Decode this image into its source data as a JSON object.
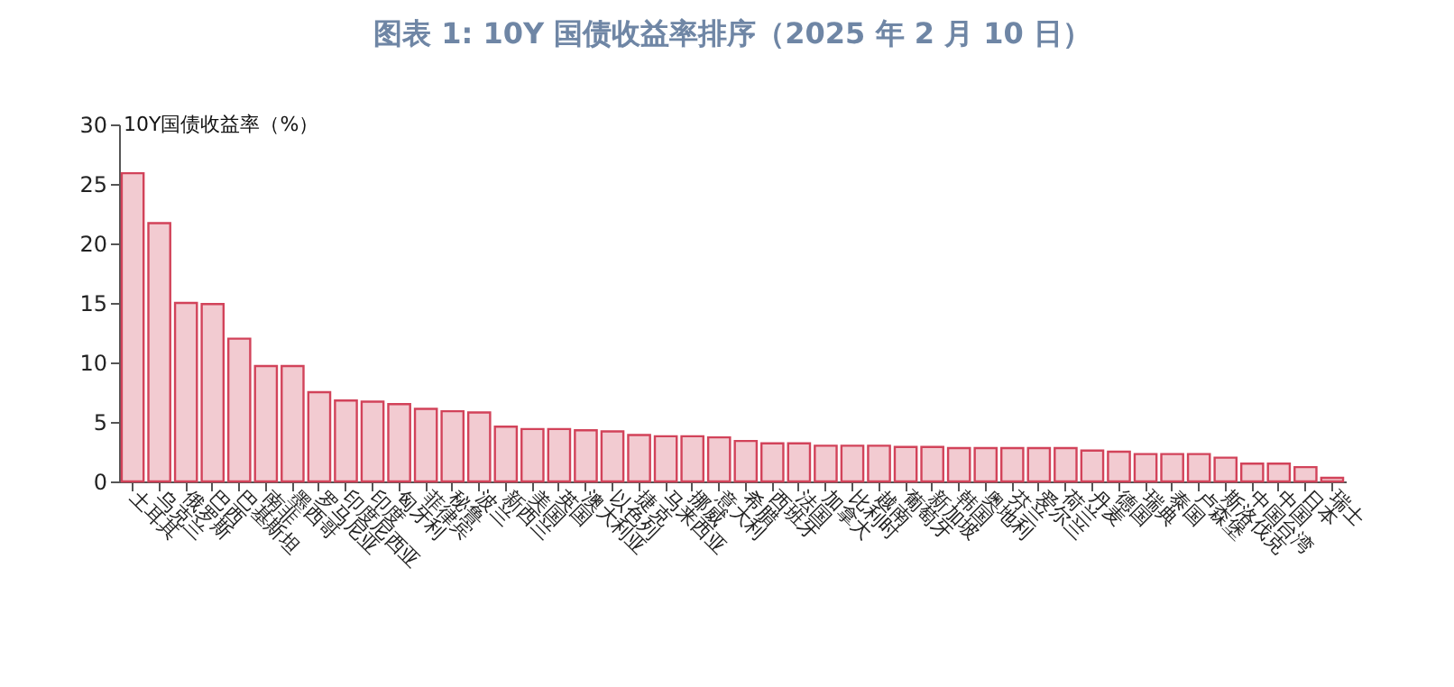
{
  "chart_data": {
    "type": "bar",
    "title": "图表 1:  10Y 国债收益率排序（2025 年 2 月 10 日）",
    "ylabel": "10Y国债收益率（%）",
    "categories": [
      "土耳其",
      "乌克兰",
      "俄罗斯",
      "巴西",
      "巴基斯坦",
      "南非",
      "墨西哥",
      "罗马尼亚",
      "印度尼西亚",
      "印度",
      "匈牙利",
      "菲律宾",
      "秘鲁",
      "波兰",
      "新西兰",
      "美国",
      "英国",
      "澳大利亚",
      "以色列",
      "捷克",
      "马来西亚",
      "挪威",
      "意大利",
      "希腊",
      "西班牙",
      "法国",
      "加拿大",
      "比利时",
      "越南",
      "葡萄牙",
      "新加坡",
      "韩国",
      "奥地利",
      "芬兰",
      "爱尔兰",
      "荷兰",
      "丹麦",
      "德国",
      "瑞典",
      "泰国",
      "卢森堡",
      "斯洛伐克",
      "中国台湾",
      "中国",
      "日本",
      "瑞士"
    ],
    "values": [
      25.9,
      21.7,
      15.0,
      14.9,
      12.0,
      9.7,
      9.7,
      7.5,
      6.8,
      6.7,
      6.5,
      6.1,
      5.9,
      5.8,
      4.6,
      4.4,
      4.4,
      4.3,
      4.2,
      3.9,
      3.8,
      3.8,
      3.7,
      3.4,
      3.2,
      3.2,
      3.0,
      3.0,
      3.0,
      2.9,
      2.9,
      2.8,
      2.8,
      2.8,
      2.8,
      2.8,
      2.6,
      2.5,
      2.3,
      2.3,
      2.3,
      2.0,
      1.5,
      1.5,
      1.2,
      0.3
    ],
    "color": "#d2435a",
    "ylim": [
      0,
      30
    ],
    "yticks": [
      0,
      5,
      10,
      15,
      20,
      25,
      30
    ]
  }
}
